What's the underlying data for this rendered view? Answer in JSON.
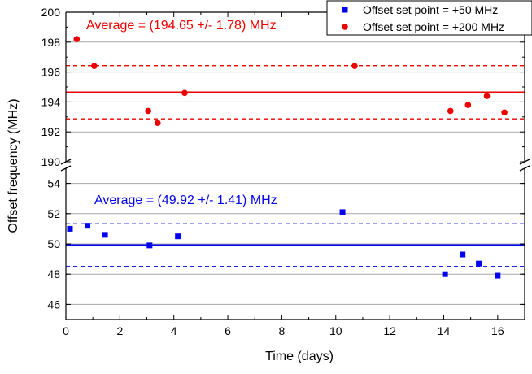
{
  "chart_data": {
    "type": "scatter",
    "xlabel": "Time (days)",
    "ylabel": "Offset frequency (MHz)",
    "xlim": [
      0,
      17
    ],
    "x_ticks": [
      "0",
      "2",
      "4",
      "6",
      "8",
      "10",
      "12",
      "14",
      "16"
    ],
    "y_axis_break": true,
    "panels": [
      {
        "id": "upper",
        "ylim": [
          190,
          200
        ],
        "y_ticks": [
          "190",
          "192",
          "194",
          "196",
          "198",
          "200"
        ]
      },
      {
        "id": "lower",
        "ylim": [
          45,
          55
        ],
        "y_ticks": [
          "46",
          "48",
          "50",
          "52",
          "54"
        ]
      }
    ],
    "grid": "horizontal",
    "legend_position": "top-right",
    "series": [
      {
        "name": "Offset set point = +50 MHz",
        "marker": "square",
        "color": "#0000ee",
        "panel": "lower",
        "points": [
          [
            0.15,
            51.0
          ],
          [
            0.8,
            51.2
          ],
          [
            1.45,
            50.6
          ],
          [
            3.1,
            49.9
          ],
          [
            4.15,
            50.5
          ],
          [
            10.25,
            52.1
          ],
          [
            14.05,
            48.0
          ],
          [
            14.7,
            49.3
          ],
          [
            15.3,
            48.7
          ],
          [
            16.0,
            47.9
          ]
        ],
        "average_label": "Average = (49.92 +/- 1.41) MHz",
        "mean": 49.92,
        "std": 1.41
      },
      {
        "name": "Offset set point = +200 MHz",
        "marker": "circle",
        "color": "#ee0000",
        "panel": "upper",
        "points": [
          [
            0.4,
            198.2
          ],
          [
            1.05,
            196.4
          ],
          [
            3.05,
            193.4
          ],
          [
            3.4,
            192.6
          ],
          [
            4.4,
            194.6
          ],
          [
            10.7,
            196.4
          ],
          [
            14.25,
            193.4
          ],
          [
            14.9,
            193.8
          ],
          [
            15.6,
            194.4
          ],
          [
            16.25,
            193.3
          ]
        ],
        "average_label": "Average = (194.65 +/- 1.78) MHz",
        "mean": 194.65,
        "std": 1.78
      }
    ]
  }
}
